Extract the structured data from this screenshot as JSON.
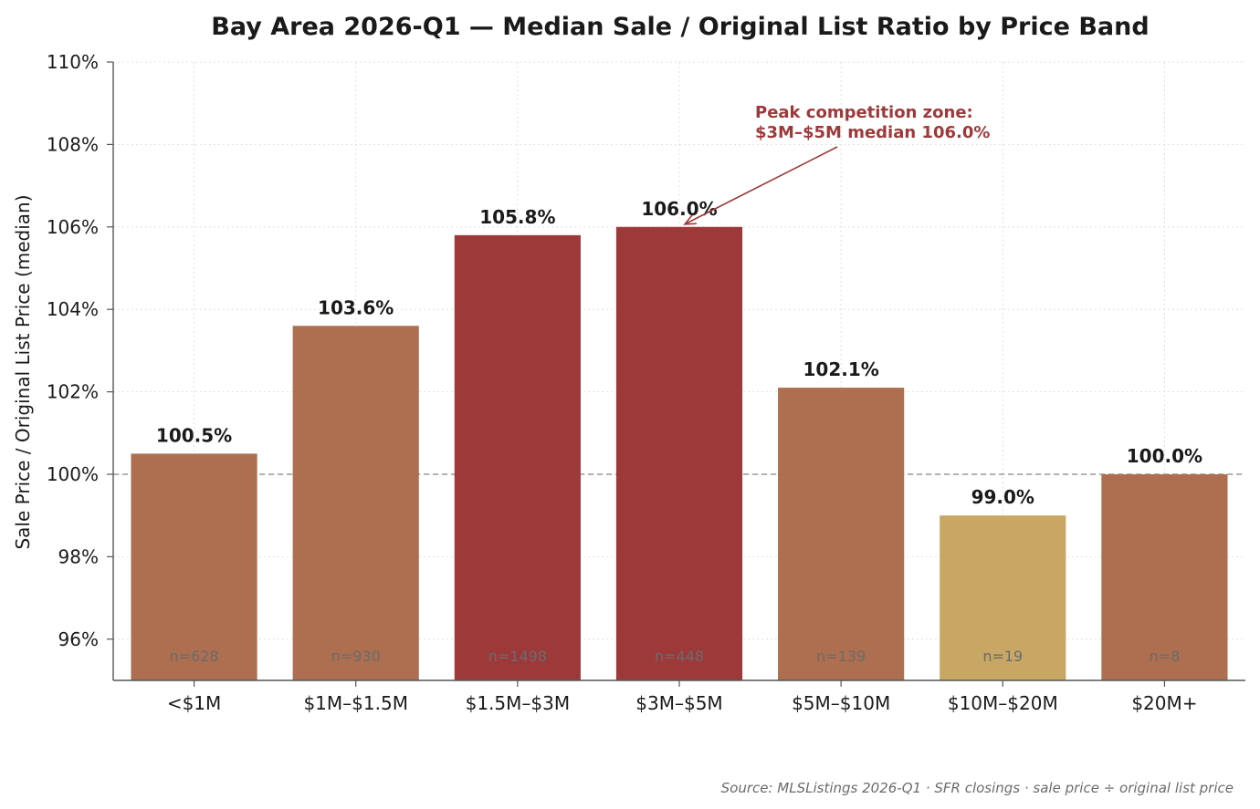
{
  "chart_data": {
    "type": "bar",
    "title": "Bay Area 2026-Q1 — Median Sale / Original List Ratio by Price Band",
    "ylabel": "Sale Price / Original List Price (median)",
    "xlabel": "",
    "ylim": [
      95,
      110
    ],
    "yticks": [
      96,
      98,
      100,
      102,
      104,
      106,
      108,
      110
    ],
    "ytick_labels": [
      "96%",
      "98%",
      "100%",
      "102%",
      "104%",
      "106%",
      "108%",
      "110%"
    ],
    "grid": true,
    "categories": [
      "<$1M",
      "$1M–$1.5M",
      "$1.5M–$3M",
      "$3M–$5M",
      "$5M–$10M",
      "$10M–$20M",
      "$20M+"
    ],
    "values": [
      100.5,
      103.6,
      105.8,
      106.0,
      102.1,
      99.0,
      100.0
    ],
    "value_labels": [
      "100.5%",
      "103.6%",
      "105.8%",
      "106.0%",
      "102.1%",
      "99.0%",
      "100.0%"
    ],
    "n_labels": [
      "n=628",
      "n=930",
      "n=1498",
      "n=448",
      "n=139",
      "n=19",
      "n=8"
    ],
    "bar_colors": [
      "#ad6f4f",
      "#ad6f4f",
      "#9e393a",
      "#9e393a",
      "#ad6f4f",
      "#c8a664",
      "#ad6f4f"
    ],
    "reference_line": {
      "value": 100,
      "style": "dashed",
      "color": "#999999"
    },
    "annotation": {
      "lines": [
        "Peak competition zone:",
        "$3M–$5M median 106.0%"
      ],
      "target_category": "$3M–$5M",
      "target_value": 106.0,
      "color": "#9e393a"
    },
    "source": "Source: MLSListings 2026-Q1 · SFR closings · sale price ÷ original list price"
  }
}
